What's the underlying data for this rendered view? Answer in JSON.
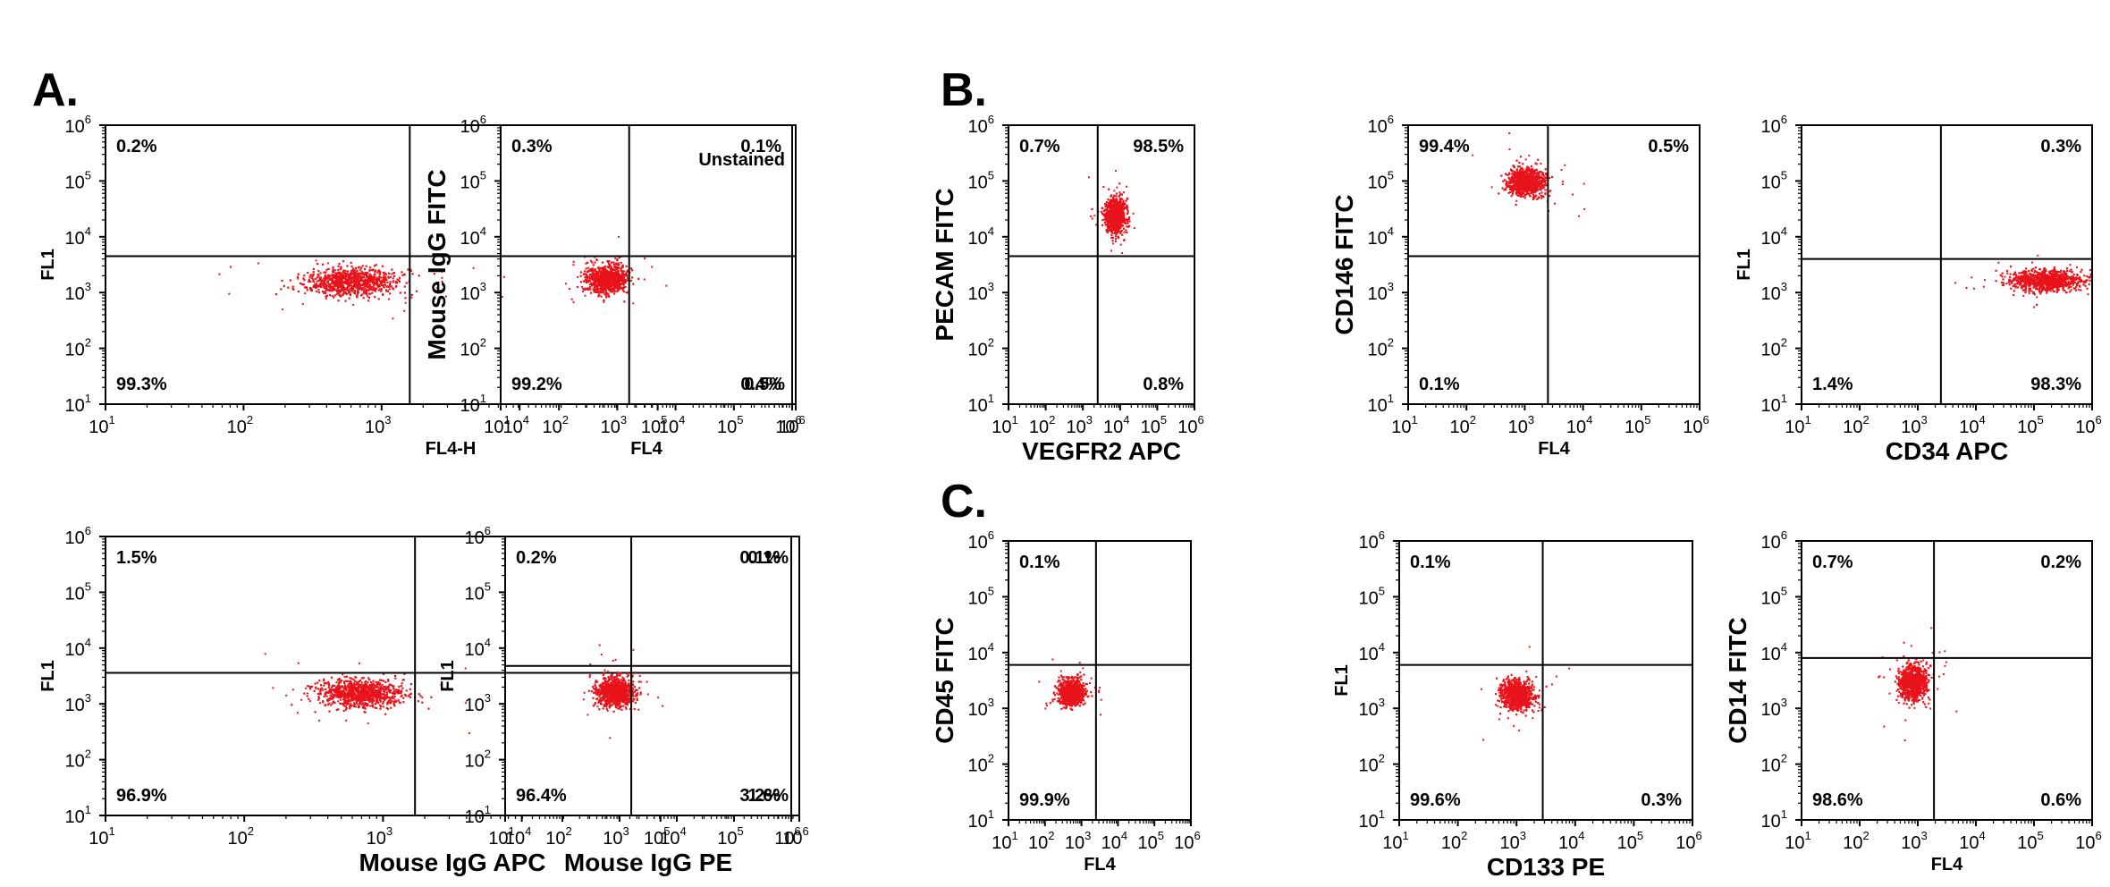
{
  "colors": {
    "dots": "#e8131b",
    "axis": "#000000",
    "background": "#ffffff"
  },
  "panel_labels": [
    "A.",
    "B.",
    "C."
  ],
  "axis": {
    "type": "log",
    "range": [
      10,
      1000000
    ],
    "ticks": [
      {
        "base": "10",
        "exp": "1"
      },
      {
        "base": "10",
        "exp": "2"
      },
      {
        "base": "10",
        "exp": "3"
      },
      {
        "base": "10",
        "exp": "4"
      },
      {
        "base": "10",
        "exp": "5"
      },
      {
        "base": "10",
        "exp": "6"
      }
    ]
  },
  "chart_data": [
    {
      "type": "scatter",
      "panel": "A.",
      "title": "Unstained",
      "xlabel": "FL4-H",
      "ylabel": "FL1",
      "xlim": [
        10,
        1000000
      ],
      "ylim": [
        10,
        1000000
      ],
      "gate": {
        "x": 1600,
        "y": 4500
      },
      "quadrants": {
        "upper_left": "0.2%",
        "upper_right": "",
        "lower_left": "99.3%",
        "lower_right": "0.5%"
      },
      "populations": [
        {
          "x": 600,
          "y": 1600,
          "n": 900,
          "sx": 0.17,
          "sy": 0.12
        }
      ]
    },
    {
      "type": "scatter",
      "panel": "A.",
      "title": "",
      "xlabel": "FL4",
      "ylabel": "Mouse IgG FITC",
      "xlim": [
        10,
        1000000
      ],
      "ylim": [
        10,
        1000000
      ],
      "gate": {
        "x": 1600,
        "y": 4500
      },
      "quadrants": {
        "upper_left": "0.3%",
        "upper_right": "0.1%",
        "lower_left": "99.2%",
        "lower_right": "0.4%"
      },
      "populations": [
        {
          "x": 650,
          "y": 1800,
          "n": 900,
          "sx": 0.17,
          "sy": 0.12
        }
      ]
    },
    {
      "type": "scatter",
      "panel": "A.",
      "title": "",
      "xlabel": "Mouse IgG APC",
      "ylabel": "FL1",
      "xlim": [
        10,
        1000000
      ],
      "ylim": [
        10,
        1000000
      ],
      "gate": {
        "x": 1700,
        "y": 3600
      },
      "quadrants": {
        "upper_left": "1.5%",
        "upper_right": "0.1%",
        "lower_left": "96.9%",
        "lower_right": "1.6%"
      },
      "populations": [
        {
          "x": 700,
          "y": 1600,
          "n": 900,
          "sx": 0.15,
          "sy": 0.12
        }
      ]
    },
    {
      "type": "scatter",
      "panel": "A.",
      "title": "",
      "xlabel": "Mouse IgG PE",
      "ylabel": "FL1",
      "xlim": [
        10,
        1000000
      ],
      "ylim": [
        10,
        1000000
      ],
      "gate": {
        "x": 1600,
        "y": 4800
      },
      "quadrants": {
        "upper_left": "0.2%",
        "upper_right": "0.1%",
        "lower_left": "96.4%",
        "lower_right": "3.2%"
      },
      "populations": [
        {
          "x": 800,
          "y": 1700,
          "n": 900,
          "sx": 0.16,
          "sy": 0.12
        }
      ]
    },
    {
      "type": "scatter",
      "panel": "B.",
      "title": "",
      "xlabel": "VEGFR2 APC",
      "ylabel": "PECAM FITC",
      "xlim": [
        10,
        1000000
      ],
      "ylim": [
        10,
        1000000
      ],
      "gate": {
        "x": 2500,
        "y": 4500
      },
      "quadrants": {
        "upper_left": "0.7%",
        "upper_right": "98.5%",
        "lower_left": "",
        "lower_right": "0.8%"
      },
      "populations": [
        {
          "x": 7000,
          "y": 25000,
          "n": 900,
          "sx": 0.13,
          "sy": 0.15
        }
      ]
    },
    {
      "type": "scatter",
      "panel": "B.",
      "title": "",
      "xlabel": "FL4",
      "ylabel": "CD146 FITC",
      "xlim": [
        10,
        1000000
      ],
      "ylim": [
        10,
        1000000
      ],
      "gate": {
        "x": 2500,
        "y": 4500
      },
      "quadrants": {
        "upper_left": "99.4%",
        "upper_right": "0.5%",
        "lower_left": "0.1%",
        "lower_right": ""
      },
      "populations": [
        {
          "x": 1000,
          "y": 100000,
          "n": 900,
          "sx": 0.15,
          "sy": 0.12
        }
      ]
    },
    {
      "type": "scatter",
      "panel": "B.",
      "title": "",
      "xlabel": "CD34 APC",
      "ylabel": "FL1",
      "xlim": [
        10,
        1000000
      ],
      "ylim": [
        10,
        1000000
      ],
      "gate": {
        "x": 2500,
        "y": 4000
      },
      "quadrants": {
        "upper_left": "",
        "upper_right": "0.3%",
        "lower_left": "1.4%",
        "lower_right": "98.3%"
      },
      "populations": [
        {
          "x": 160000,
          "y": 1700,
          "n": 900,
          "sx": 0.3,
          "sy": 0.09
        }
      ]
    },
    {
      "type": "scatter",
      "panel": "C.",
      "title": "",
      "xlabel": "FL4",
      "ylabel": "CD45 FITC",
      "xlim": [
        10,
        1000000
      ],
      "ylim": [
        10,
        1000000
      ],
      "gate": {
        "x": 2500,
        "y": 6000
      },
      "quadrants": {
        "upper_left": "0.1%",
        "upper_right": "",
        "lower_left": "99.9%",
        "lower_right": ""
      },
      "populations": [
        {
          "x": 500,
          "y": 2000,
          "n": 900,
          "sx": 0.17,
          "sy": 0.11
        }
      ]
    },
    {
      "type": "scatter",
      "panel": "C.",
      "title": "",
      "xlabel": "CD133 PE",
      "ylabel": "FL1",
      "xlim": [
        10,
        1000000
      ],
      "ylim": [
        10,
        1000000
      ],
      "gate": {
        "x": 2800,
        "y": 6000
      },
      "quadrants": {
        "upper_left": "0.1%",
        "upper_right": "",
        "lower_left": "99.6%",
        "lower_right": "0.3%"
      },
      "populations": [
        {
          "x": 1000,
          "y": 1800,
          "n": 900,
          "sx": 0.13,
          "sy": 0.12
        }
      ]
    },
    {
      "type": "scatter",
      "panel": "C.",
      "title": "",
      "xlabel": "FL4",
      "ylabel": "CD14 FITC",
      "xlim": [
        10,
        1000000
      ],
      "ylim": [
        10,
        1000000
      ],
      "gate": {
        "x": 1900,
        "y": 8000
      },
      "quadrants": {
        "upper_left": "0.7%",
        "upper_right": "0.2%",
        "lower_left": "98.6%",
        "lower_right": "0.6%"
      },
      "populations": [
        {
          "x": 800,
          "y": 3000,
          "n": 900,
          "sx": 0.12,
          "sy": 0.15
        }
      ]
    }
  ]
}
